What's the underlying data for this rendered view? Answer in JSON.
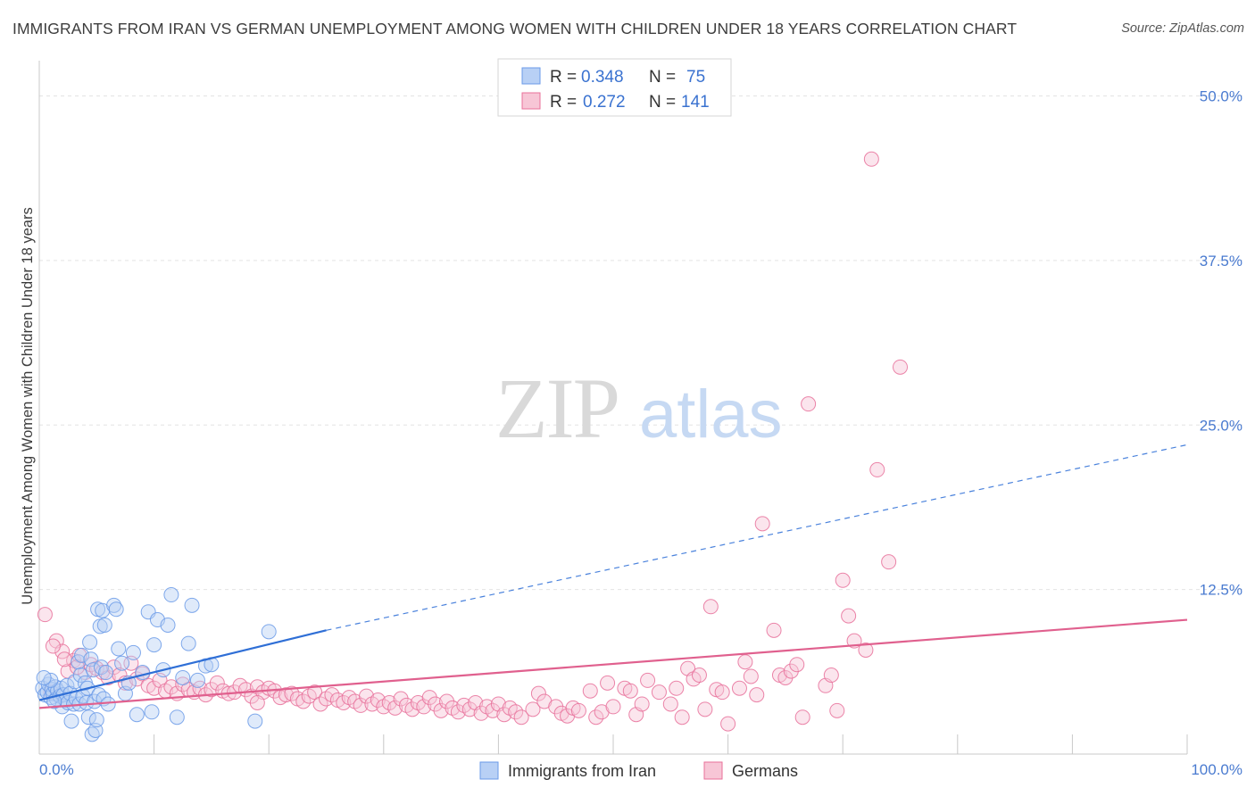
{
  "title": "IMMIGRANTS FROM IRAN VS GERMAN UNEMPLOYMENT AMONG WOMEN WITH CHILDREN UNDER 18 YEARS CORRELATION CHART",
  "source": "Source: ZipAtlas.com",
  "watermark": {
    "zip": "ZIP",
    "atlas": "atlas"
  },
  "chart_data": {
    "type": "scatter",
    "title": "IMMIGRANTS FROM IRAN VS GERMAN UNEMPLOYMENT AMONG WOMEN WITH CHILDREN UNDER 18 YEARS CORRELATION CHART",
    "xlabel": "",
    "ylabel": "Unemployment Among Women with Children Under 18 years",
    "xlim": [
      0,
      100
    ],
    "ylim": [
      0,
      52
    ],
    "x_tick_labels": [
      "0.0%",
      "100.0%"
    ],
    "y_ticks": [
      12.5,
      25.0,
      37.5,
      50.0
    ],
    "y_tick_labels": [
      "12.5%",
      "25.0%",
      "37.5%",
      "50.0%"
    ],
    "grid": true,
    "legend": {
      "position": "top-center",
      "entries": [
        {
          "r_label": "R =",
          "r_value": "0.348",
          "n_label": "N =",
          "n_value": "75"
        },
        {
          "r_label": "R =",
          "r_value": "0.272",
          "n_label": "N =",
          "n_value": "141"
        }
      ]
    },
    "series": [
      {
        "name": "Immigrants from Iran",
        "color": "#6a9ae8",
        "fill": "#b8d0f5",
        "trend": {
          "x0": 0,
          "y0": 4.1,
          "x1": 25,
          "y1": 9.4,
          "x_end_dashed": 100,
          "y_end_dashed": 23.5
        },
        "points": [
          [
            0.3,
            5.0
          ],
          [
            0.5,
            4.5
          ],
          [
            0.7,
            4.7
          ],
          [
            0.8,
            5.3
          ],
          [
            1.0,
            4.3
          ],
          [
            1.1,
            4.9
          ],
          [
            1.2,
            4.6
          ],
          [
            1.4,
            5.1
          ],
          [
            1.5,
            4.2
          ],
          [
            1.6,
            4.8
          ],
          [
            1.8,
            4.4
          ],
          [
            1.9,
            5.0
          ],
          [
            2.0,
            3.6
          ],
          [
            2.1,
            4.5
          ],
          [
            2.3,
            4.1
          ],
          [
            2.4,
            5.2
          ],
          [
            2.5,
            3.9
          ],
          [
            2.7,
            4.6
          ],
          [
            2.8,
            2.5
          ],
          [
            3.0,
            3.8
          ],
          [
            3.1,
            5.5
          ],
          [
            3.2,
            4.2
          ],
          [
            3.4,
            7.0
          ],
          [
            3.5,
            3.8
          ],
          [
            3.6,
            6.0
          ],
          [
            3.7,
            7.5
          ],
          [
            3.8,
            4.4
          ],
          [
            4.0,
            5.4
          ],
          [
            4.1,
            3.9
          ],
          [
            4.2,
            5.0
          ],
          [
            4.3,
            2.8
          ],
          [
            4.4,
            8.5
          ],
          [
            4.5,
            7.2
          ],
          [
            4.6,
            1.5
          ],
          [
            4.7,
            6.4
          ],
          [
            4.8,
            4.0
          ],
          [
            4.9,
            1.8
          ],
          [
            5.0,
            2.6
          ],
          [
            5.1,
            11.0
          ],
          [
            5.2,
            4.5
          ],
          [
            5.3,
            9.7
          ],
          [
            5.4,
            6.6
          ],
          [
            5.5,
            10.9
          ],
          [
            5.6,
            4.2
          ],
          [
            5.7,
            9.8
          ],
          [
            5.8,
            6.2
          ],
          [
            6.0,
            3.8
          ],
          [
            6.5,
            11.3
          ],
          [
            6.7,
            11.0
          ],
          [
            6.9,
            8.0
          ],
          [
            7.2,
            6.9
          ],
          [
            7.5,
            4.6
          ],
          [
            7.8,
            5.4
          ],
          [
            8.2,
            7.7
          ],
          [
            8.5,
            3.0
          ],
          [
            9.0,
            6.2
          ],
          [
            9.5,
            10.8
          ],
          [
            9.8,
            3.2
          ],
          [
            10.0,
            8.3
          ],
          [
            10.3,
            10.2
          ],
          [
            10.8,
            6.4
          ],
          [
            11.2,
            9.8
          ],
          [
            11.5,
            12.1
          ],
          [
            12.0,
            2.8
          ],
          [
            12.5,
            5.8
          ],
          [
            13.0,
            8.4
          ],
          [
            13.3,
            11.3
          ],
          [
            13.8,
            5.6
          ],
          [
            14.5,
            6.7
          ],
          [
            15.0,
            6.8
          ],
          [
            18.8,
            2.5
          ],
          [
            20.0,
            9.3
          ],
          [
            1.0,
            5.6
          ],
          [
            0.4,
            5.8
          ],
          [
            1.3,
            4.0
          ]
        ]
      },
      {
        "name": "Germans",
        "color": "#e8709a",
        "fill": "#f7c6d6",
        "trend": {
          "x0": 0,
          "y0": 3.5,
          "x1": 100,
          "y1": 10.2
        },
        "points": [
          [
            0.5,
            10.6
          ],
          [
            1.0,
            4.7
          ],
          [
            1.5,
            8.6
          ],
          [
            2.0,
            7.8
          ],
          [
            2.5,
            6.3
          ],
          [
            3.0,
            7.1
          ],
          [
            3.5,
            7.5
          ],
          [
            4.0,
            6.2
          ],
          [
            4.5,
            6.8
          ],
          [
            5.0,
            6.5
          ],
          [
            5.5,
            6.2
          ],
          [
            6.0,
            5.8
          ],
          [
            6.5,
            6.6
          ],
          [
            7.0,
            6.0
          ],
          [
            7.5,
            5.4
          ],
          [
            8.0,
            6.9
          ],
          [
            8.5,
            5.7
          ],
          [
            9.0,
            6.1
          ],
          [
            9.5,
            5.2
          ],
          [
            10.0,
            5.0
          ],
          [
            10.5,
            5.6
          ],
          [
            11.0,
            4.8
          ],
          [
            11.5,
            5.1
          ],
          [
            12.0,
            4.6
          ],
          [
            12.5,
            5.3
          ],
          [
            13.0,
            4.9
          ],
          [
            13.5,
            4.7
          ],
          [
            14.0,
            5.0
          ],
          [
            14.5,
            4.5
          ],
          [
            15.0,
            4.9
          ],
          [
            15.5,
            5.4
          ],
          [
            16.0,
            4.8
          ],
          [
            16.5,
            4.6
          ],
          [
            17.0,
            4.7
          ],
          [
            17.5,
            5.2
          ],
          [
            18.0,
            4.9
          ],
          [
            18.5,
            4.4
          ],
          [
            19.0,
            5.1
          ],
          [
            19.5,
            4.7
          ],
          [
            20.0,
            5.0
          ],
          [
            20.5,
            4.8
          ],
          [
            21.0,
            4.3
          ],
          [
            21.5,
            4.5
          ],
          [
            22.0,
            4.6
          ],
          [
            22.5,
            4.2
          ],
          [
            23.0,
            4.0
          ],
          [
            23.5,
            4.4
          ],
          [
            24.0,
            4.7
          ],
          [
            24.5,
            3.8
          ],
          [
            25.0,
            4.2
          ],
          [
            25.5,
            4.5
          ],
          [
            26.0,
            4.1
          ],
          [
            26.5,
            3.9
          ],
          [
            27.0,
            4.3
          ],
          [
            27.5,
            4.0
          ],
          [
            28.0,
            3.7
          ],
          [
            28.5,
            4.4
          ],
          [
            29.0,
            3.8
          ],
          [
            29.5,
            4.1
          ],
          [
            30.0,
            3.6
          ],
          [
            30.5,
            3.9
          ],
          [
            31.0,
            3.5
          ],
          [
            31.5,
            4.2
          ],
          [
            32.0,
            3.7
          ],
          [
            32.5,
            3.4
          ],
          [
            33.0,
            3.9
          ],
          [
            33.5,
            3.6
          ],
          [
            34.0,
            4.3
          ],
          [
            34.5,
            3.8
          ],
          [
            35.0,
            3.3
          ],
          [
            35.5,
            4.0
          ],
          [
            36.0,
            3.5
          ],
          [
            36.5,
            3.2
          ],
          [
            37.0,
            3.7
          ],
          [
            37.5,
            3.4
          ],
          [
            38.0,
            3.9
          ],
          [
            38.5,
            3.1
          ],
          [
            39.0,
            3.6
          ],
          [
            39.5,
            3.3
          ],
          [
            40.0,
            3.8
          ],
          [
            40.5,
            3.0
          ],
          [
            41.0,
            3.5
          ],
          [
            41.5,
            3.2
          ],
          [
            42.0,
            2.8
          ],
          [
            43.0,
            3.4
          ],
          [
            43.5,
            4.6
          ],
          [
            44.0,
            4.0
          ],
          [
            45.0,
            3.6
          ],
          [
            45.5,
            3.1
          ],
          [
            46.0,
            2.9
          ],
          [
            46.5,
            3.5
          ],
          [
            47.0,
            3.3
          ],
          [
            48.0,
            4.8
          ],
          [
            48.5,
            2.8
          ],
          [
            49.0,
            3.2
          ],
          [
            49.5,
            5.4
          ],
          [
            50.0,
            3.6
          ],
          [
            51.0,
            5.0
          ],
          [
            51.5,
            4.8
          ],
          [
            52.0,
            3.0
          ],
          [
            52.5,
            3.8
          ],
          [
            53.0,
            5.6
          ],
          [
            54.0,
            4.7
          ],
          [
            55.0,
            3.8
          ],
          [
            55.5,
            5.0
          ],
          [
            56.0,
            2.8
          ],
          [
            56.5,
            6.5
          ],
          [
            57.0,
            5.7
          ],
          [
            57.5,
            6.0
          ],
          [
            58.0,
            3.4
          ],
          [
            58.5,
            11.2
          ],
          [
            59.0,
            4.9
          ],
          [
            59.5,
            4.7
          ],
          [
            60.0,
            2.3
          ],
          [
            61.0,
            5.0
          ],
          [
            61.5,
            7.0
          ],
          [
            62.0,
            5.9
          ],
          [
            62.5,
            4.5
          ],
          [
            63.0,
            17.5
          ],
          [
            64.0,
            9.4
          ],
          [
            64.5,
            6.0
          ],
          [
            65.0,
            5.8
          ],
          [
            65.5,
            6.3
          ],
          [
            66.0,
            6.8
          ],
          [
            66.5,
            2.8
          ],
          [
            67.0,
            26.6
          ],
          [
            68.5,
            5.2
          ],
          [
            69.0,
            6.0
          ],
          [
            69.5,
            3.3
          ],
          [
            70.0,
            13.2
          ],
          [
            70.5,
            10.5
          ],
          [
            71.0,
            8.6
          ],
          [
            72.0,
            7.9
          ],
          [
            72.5,
            45.2
          ],
          [
            73.0,
            21.6
          ],
          [
            74.0,
            14.6
          ],
          [
            75.0,
            29.4
          ],
          [
            1.2,
            8.2
          ],
          [
            2.2,
            7.2
          ],
          [
            3.3,
            6.6
          ],
          [
            19.0,
            3.9
          ]
        ]
      }
    ]
  },
  "bottom_legend": [
    {
      "label": "Immigrants from Iran"
    },
    {
      "label": "Germans"
    }
  ]
}
